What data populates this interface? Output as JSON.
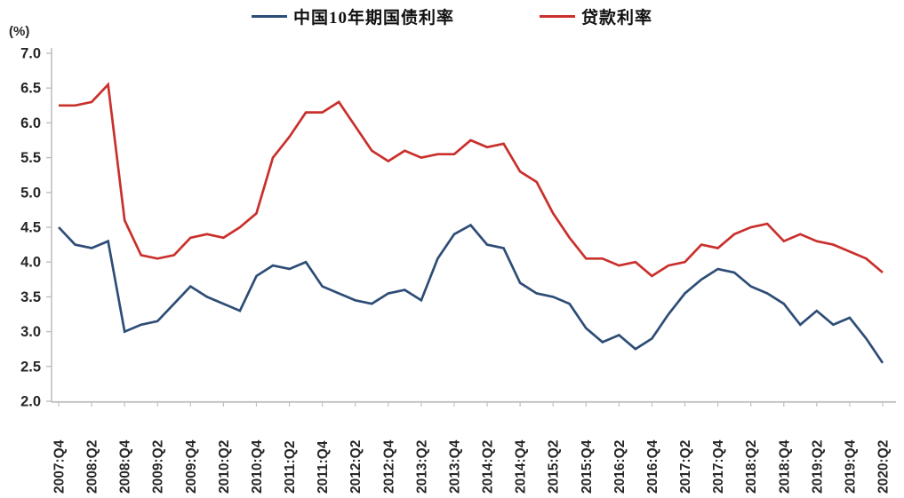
{
  "legend": {
    "items": [
      {
        "id": "bond",
        "label": "中国10年期国债利率",
        "color": "#2e4d76"
      },
      {
        "id": "loan",
        "label": "贷款利率",
        "color": "#c9302c"
      }
    ]
  },
  "y_axis": {
    "unit_label": "(%)",
    "tick_labels": [
      "7.0",
      "6.5",
      "6.0",
      "5.5",
      "5.0",
      "4.5",
      "4.0",
      "3.5",
      "3.0",
      "2.5",
      "2.0"
    ],
    "min": 2.0,
    "max": 7.0,
    "step": 0.5
  },
  "x_axis": {
    "tick_labels": [
      "2007:Q4",
      "2008:Q2",
      "2008:Q4",
      "2009:Q2",
      "2009:Q4",
      "2010:Q2",
      "2010:Q4",
      "2011:Q2",
      "2011:Q4",
      "2012:Q2",
      "2012:Q4",
      "2013:Q2",
      "2013:Q4",
      "2014:Q2",
      "2014:Q4",
      "2015:Q2",
      "2015:Q4",
      "2016:Q2",
      "2016:Q4",
      "2017:Q2",
      "2017:Q4",
      "2018:Q2",
      "2018:Q4",
      "2019:Q2",
      "2019:Q4",
      "2020:Q2"
    ]
  },
  "chart_data": {
    "type": "line",
    "title": "",
    "xlabel": "",
    "ylabel": "(%)",
    "ylim": [
      2.0,
      7.0
    ],
    "grid": false,
    "legend_position": "top-center",
    "x": [
      "2007:Q4",
      "2008:Q1",
      "2008:Q2",
      "2008:Q3",
      "2008:Q4",
      "2009:Q1",
      "2009:Q2",
      "2009:Q3",
      "2009:Q4",
      "2010:Q1",
      "2010:Q2",
      "2010:Q3",
      "2010:Q4",
      "2011:Q1",
      "2011:Q2",
      "2011:Q3",
      "2011:Q4",
      "2012:Q1",
      "2012:Q2",
      "2012:Q3",
      "2012:Q4",
      "2013:Q1",
      "2013:Q2",
      "2013:Q3",
      "2013:Q4",
      "2014:Q1",
      "2014:Q2",
      "2014:Q3",
      "2014:Q4",
      "2015:Q1",
      "2015:Q2",
      "2015:Q3",
      "2015:Q4",
      "2016:Q1",
      "2016:Q2",
      "2016:Q3",
      "2016:Q4",
      "2017:Q1",
      "2017:Q2",
      "2017:Q3",
      "2017:Q4",
      "2018:Q1",
      "2018:Q2",
      "2018:Q3",
      "2018:Q4",
      "2019:Q1",
      "2019:Q2",
      "2019:Q3",
      "2019:Q4",
      "2020:Q1",
      "2020:Q2"
    ],
    "series": [
      {
        "name": "中国10年期国债利率",
        "color": "#2e4d76",
        "values": [
          4.5,
          4.25,
          4.2,
          4.3,
          3.0,
          3.1,
          3.15,
          3.4,
          3.65,
          3.5,
          3.4,
          3.3,
          3.8,
          3.95,
          3.9,
          4.0,
          3.65,
          3.55,
          3.45,
          3.4,
          3.55,
          3.6,
          3.45,
          4.05,
          4.4,
          4.53,
          4.25,
          4.2,
          3.7,
          3.55,
          3.5,
          3.4,
          3.05,
          2.85,
          2.95,
          2.75,
          2.9,
          3.25,
          3.55,
          3.75,
          3.9,
          3.85,
          3.65,
          3.55,
          3.4,
          3.1,
          3.3,
          3.1,
          3.2,
          2.9,
          2.55
        ]
      },
      {
        "name": "贷款利率",
        "color": "#c9302c",
        "values": [
          6.25,
          6.25,
          6.3,
          6.55,
          4.6,
          4.1,
          4.05,
          4.1,
          4.35,
          4.4,
          4.35,
          4.5,
          4.7,
          5.5,
          5.8,
          6.15,
          6.15,
          6.3,
          5.95,
          5.6,
          5.45,
          5.6,
          5.5,
          5.55,
          5.55,
          5.75,
          5.65,
          5.7,
          5.3,
          5.15,
          4.7,
          4.35,
          4.05,
          4.05,
          3.95,
          4.0,
          3.8,
          3.95,
          4.0,
          4.25,
          4.2,
          4.4,
          4.5,
          4.55,
          4.3,
          4.4,
          4.3,
          4.25,
          4.15,
          4.05,
          3.85
        ]
      }
    ]
  },
  "style": {
    "axis_color": "#bfbfbf",
    "tick_label_color": "#262626",
    "background": "#ffffff"
  }
}
